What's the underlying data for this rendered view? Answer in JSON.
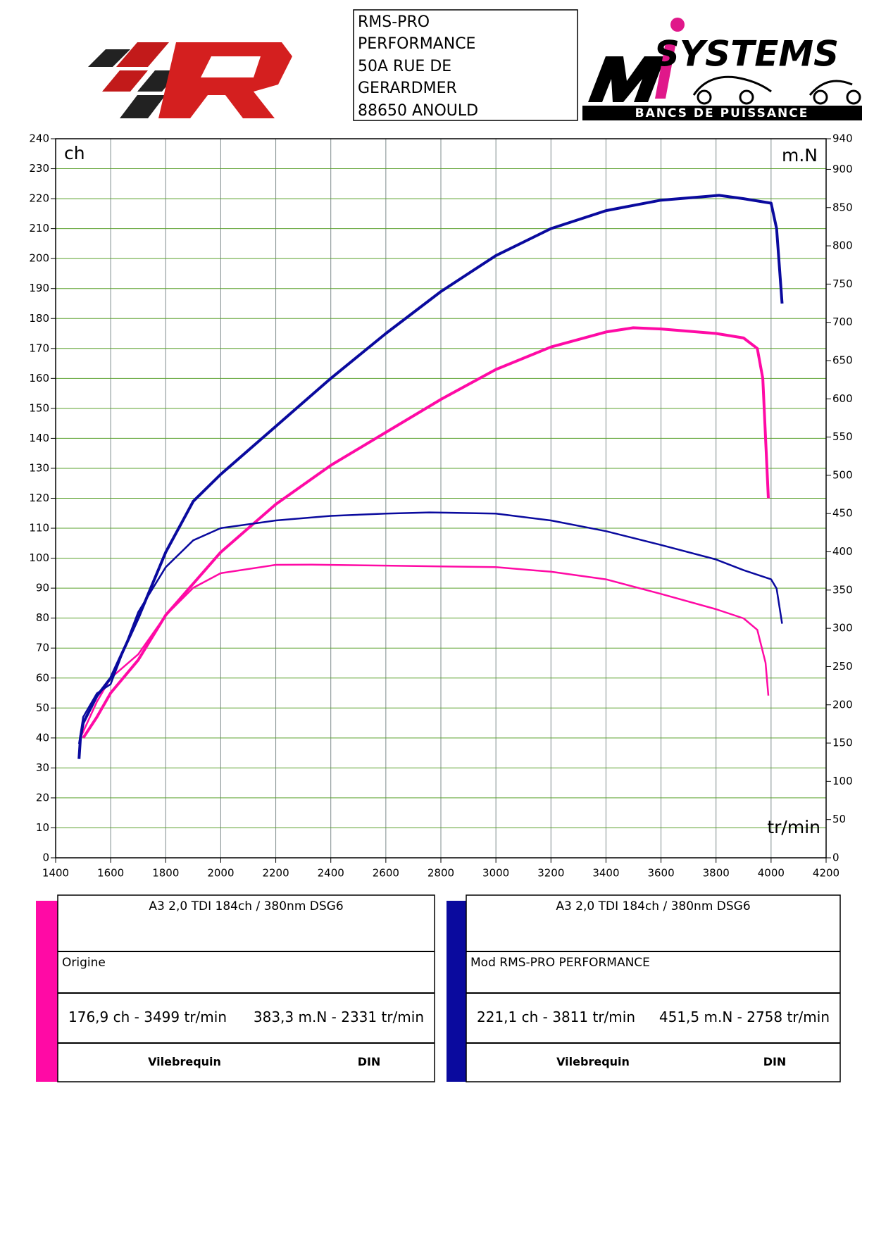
{
  "header": {
    "address": [
      "RMS-PRO",
      "PERFORMANCE",
      "50A RUE DE",
      "GERARDMER",
      "88650 ANOULD"
    ],
    "logo_text": "SYSTEMS",
    "logo_subtext": "BANCS DE PUISSANCE"
  },
  "chart_data": {
    "type": "line",
    "y_label": "ch",
    "y2_label": "m.N",
    "x_label": "tr/min",
    "xlim": [
      1400,
      4200
    ],
    "xticks": [
      1400,
      1600,
      1800,
      2000,
      2200,
      2400,
      2600,
      2800,
      3000,
      3200,
      3400,
      3600,
      3800,
      4000,
      4200
    ],
    "ylim": [
      0,
      240
    ],
    "yticks": [
      0,
      10,
      20,
      30,
      40,
      50,
      60,
      70,
      80,
      90,
      100,
      110,
      120,
      130,
      140,
      150,
      160,
      170,
      180,
      190,
      200,
      210,
      220,
      230,
      240
    ],
    "y2lim": [
      0,
      940
    ],
    "y2ticks": [
      0,
      50,
      100,
      150,
      200,
      250,
      300,
      350,
      400,
      450,
      500,
      550,
      600,
      650,
      700,
      750,
      800,
      850,
      900,
      940
    ],
    "grid": true,
    "grid_color_x": "#7f8c8d",
    "grid_color_y": "#5aa02c",
    "series": [
      {
        "color": "#ff0aa5",
        "x": [
          1500,
          1550,
          1600,
          1700,
          1800,
          2000,
          2200,
          2400,
          2600,
          2800,
          3000,
          3200,
          3400,
          3499,
          3600,
          3800,
          3900,
          3950,
          3970,
          3990
        ],
        "values": [
          40,
          47,
          55,
          66,
          81,
          102,
          118,
          131,
          142,
          153,
          163,
          170.5,
          175.5,
          176.9,
          176.5,
          175,
          173.5,
          170,
          160,
          120
        ]
      },
      {
        "color": "#ff0aa5",
        "axis": "y2",
        "x": [
          1490,
          1550,
          1600,
          1700,
          1800,
          1900,
          2000,
          2200,
          2331,
          2600,
          2800,
          3000,
          3200,
          3400,
          3600,
          3800,
          3900,
          3950,
          3980,
          3990
        ],
        "values": [
          157,
          204,
          235,
          266,
          317,
          353,
          372,
          383,
          383.3,
          382,
          381,
          380,
          374,
          364,
          345,
          325,
          313,
          298,
          255,
          212
        ]
      },
      {
        "color": "#0a0a9e",
        "x": [
          1485,
          1490,
          1500,
          1550,
          1600,
          1700,
          1800,
          1900,
          2000,
          2200,
          2400,
          2600,
          2800,
          3000,
          3200,
          3400,
          3600,
          3811,
          3900,
          4000,
          4020,
          4040
        ],
        "values": [
          33,
          40,
          45,
          54,
          60,
          80,
          102,
          119,
          128,
          144,
          160,
          175,
          189,
          201,
          210,
          216,
          219.5,
          221.1,
          220,
          218.5,
          210,
          185
        ]
      },
      {
        "color": "#0a0a9e",
        "axis": "y2",
        "x": [
          1485,
          1500,
          1550,
          1600,
          1700,
          1800,
          1900,
          2000,
          2200,
          2400,
          2600,
          2758,
          3000,
          3200,
          3400,
          3600,
          3800,
          3900,
          4000,
          4020,
          4040
        ],
        "values": [
          149,
          184,
          215,
          227,
          321,
          380,
          415,
          431,
          441,
          447,
          450,
          451.5,
          450,
          441,
          427,
          409,
          390,
          376,
          364,
          352,
          306
        ]
      }
    ]
  },
  "panels": [
    {
      "color": "#ff0aa5",
      "title": "A3 2,0 TDI 184ch / 380nm DSG6",
      "label": "Origine",
      "power": "176,9 ch - 3499 tr/min",
      "torque": "383,3 m.N - 2331 tr/min",
      "col1": "Vilebrequin",
      "col2": "DIN"
    },
    {
      "color": "#0a0a9e",
      "title": "A3 2,0 TDI 184ch / 380nm DSG6",
      "label": "Mod RMS-PRO PERFORMANCE",
      "power": "221,1 ch - 3811 tr/min",
      "torque": "451,5 m.N - 2758 tr/min",
      "col1": "Vilebrequin",
      "col2": "DIN"
    }
  ]
}
